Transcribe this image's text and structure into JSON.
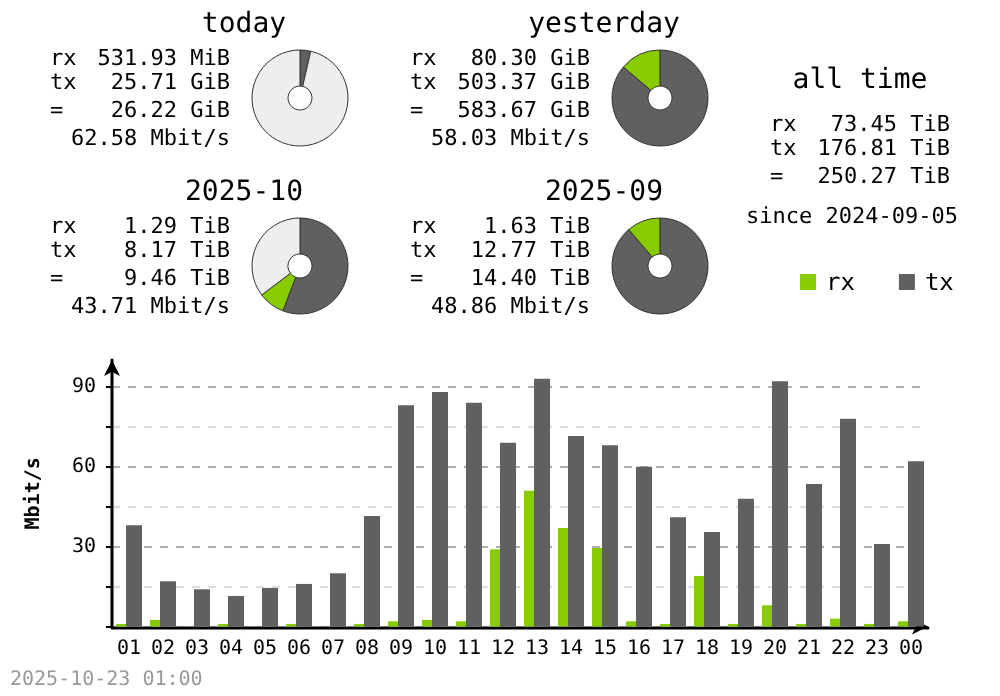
{
  "chart_data": [
    {
      "type": "donut",
      "title": "today",
      "categories": [
        null,
        null,
        null
      ],
      "values": [
        3.6,
        null,
        96.4
      ],
      "colors": [
        "#606060",
        "#88cc00",
        "#eeeeee"
      ],
      "annotations": [
        "rx 531.93 MiB",
        "tx 25.71 GiB",
        "= 26.22 GiB",
        "62.58 Mbit/s"
      ]
    },
    {
      "type": "donut",
      "title": "yesterday",
      "categories": [
        null,
        null
      ],
      "values": [
        86.2,
        13.8
      ],
      "colors": [
        "#606060",
        "#88cc00"
      ],
      "annotations": [
        "rx 80.30 GiB",
        "tx 503.37 GiB",
        "= 583.67 GiB",
        "58.03 Mbit/s"
      ]
    },
    {
      "type": "donut",
      "title": "2025-10",
      "categories": [
        null,
        null,
        null
      ],
      "values": [
        55.8,
        8.9,
        35.3
      ],
      "colors": [
        "#606060",
        "#88cc00",
        "#eeeeee"
      ],
      "annotations": [
        "rx 1.29 TiB",
        "tx 8.17 TiB",
        "= 9.46 TiB",
        "43.71 Mbit/s"
      ]
    },
    {
      "type": "donut",
      "title": "2025-09",
      "categories": [
        null,
        null
      ],
      "values": [
        88.7,
        11.3
      ],
      "colors": [
        "#606060",
        "#88cc00"
      ],
      "annotations": [
        "rx 1.63 TiB",
        "tx 12.77 TiB",
        "= 14.40 TiB",
        "48.86 Mbit/s"
      ]
    },
    {
      "type": "other",
      "title": "all time",
      "annotations": [
        "rx 73.45 TiB",
        "tx 176.81 TiB",
        "= 250.27 TiB",
        "since 2024-09-05"
      ]
    },
    {
      "type": "bar",
      "categories": [
        "01",
        "02",
        "03",
        "04",
        "05",
        "06",
        "07",
        "08",
        "09",
        "10",
        "11",
        "12",
        "13",
        "14",
        "15",
        "16",
        "17",
        "18",
        "19",
        "20",
        "21",
        "22",
        "23",
        "00"
      ],
      "series": [
        {
          "name": "rx",
          "color": "#88cc00",
          "values": [
            1,
            2.5,
            0,
            1,
            0,
            1,
            0,
            1,
            2,
            2.5,
            2,
            29,
            51,
            37,
            29.5,
            2,
            1,
            19,
            1,
            8,
            1,
            3,
            1,
            2
          ]
        },
        {
          "name": "tx",
          "color": "#606060",
          "values": [
            38,
            17,
            14,
            11.5,
            14.5,
            16,
            20,
            41.5,
            83,
            88,
            84,
            69,
            93,
            71.5,
            68,
            60,
            41,
            35.5,
            48,
            92,
            53.5,
            78,
            31,
            62
          ]
        }
      ],
      "ylabel": "Mbit/s",
      "ylim": [
        0,
        100
      ],
      "yticks": [
        {
          "value": 0,
          "label": null
        },
        {
          "value": 15,
          "label": null
        },
        30,
        {
          "value": 45,
          "label": null
        },
        60,
        {
          "value": 75,
          "label": null
        },
        90
      ],
      "grid": "y",
      "legend": "top right",
      "annotations": [
        "2025-10-23 01:00"
      ]
    }
  ]
}
